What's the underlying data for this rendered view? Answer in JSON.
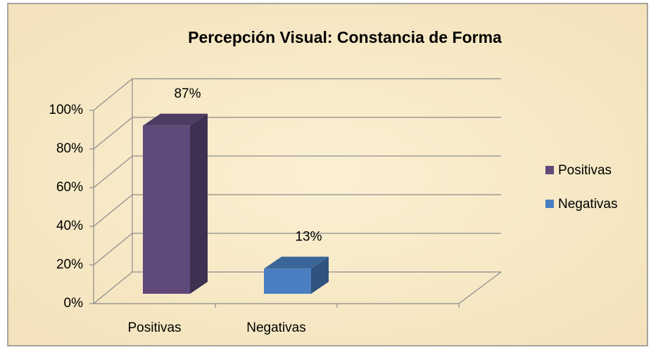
{
  "chart_data": {
    "type": "bar3d",
    "title": "Percepción Visual: Constancia de Forma",
    "categories": [
      "Positivas",
      "Negativas"
    ],
    "values": [
      87,
      13
    ],
    "value_labels": [
      "87%",
      "13%"
    ],
    "colors": [
      "#5f4a7b",
      "#4a7fc1"
    ],
    "ylim": [
      0,
      100
    ],
    "yticks": [
      {
        "value": 0,
        "label": "0%"
      },
      {
        "value": 20,
        "label": "20%"
      },
      {
        "value": 40,
        "label": "40%"
      },
      {
        "value": 60,
        "label": "60%"
      },
      {
        "value": 80,
        "label": "80%"
      },
      {
        "value": 100,
        "label": "100%"
      }
    ],
    "grid": true,
    "legend": "right"
  }
}
